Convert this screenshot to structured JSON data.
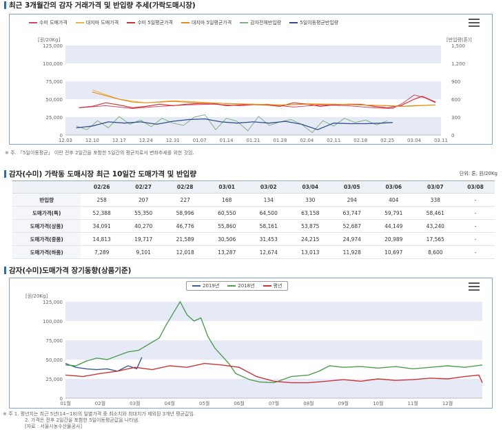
{
  "section1": {
    "title": "최근 3개월간의 감자 거래가격 및 반입량 추세(가락도매시장)",
    "note": "※ 주. 「5일이동평균」 이란 전후 2일간을 포함한 5일간의 평균치로서 변화추세를 위한 것임."
  },
  "section2": {
    "title": "감자(수미) 가락동 도매시장 최근 10일간 도매가격 및 반입량",
    "unit": "단위: 톤, 원/20Kg"
  },
  "section3": {
    "title": "감자(수미)도매가격 장기동향(상품기준)",
    "notes": [
      "※ 주 1. 평년치는 최근 5년(14~18)의 일별가격 중 최소치와 최대치가 제외된 3개년 평균값임.",
      "2. 가격은 전후 2일간을 포함한 5일이동평균값을 나타냄.",
      "[자료 : 서울시농수산물공사]"
    ]
  },
  "colors": {
    "frame": "#7fa2c8",
    "band": "#e6eaf6",
    "sumi_price": "#d64562",
    "daeji_price": "#f0b050",
    "sumi_ma5": "#d23030",
    "daeji_ma5": "#e88a1a",
    "volume": "#80b080",
    "volume_ma5": "#2e4c88",
    "y2019": "#3a5a95",
    "y2018": "#4f9e4f",
    "normal": "#c93535"
  },
  "chart_data": [
    {
      "type": "line",
      "title": "최근 3개월간의 감자 거래가격 및 반입량 추세(가락도매시장)",
      "xlabel": "",
      "ylabel": "[원/20Kg]",
      "y2label": "[반입량(톤)]",
      "ylim": [
        0,
        125000
      ],
      "y2lim": [
        0,
        1500
      ],
      "yticks": [
        "0",
        "25,000",
        "50,000",
        "75,000",
        "100,000",
        "125,000"
      ],
      "y2ticks": [
        "0",
        "300",
        "600",
        "900",
        "1,200",
        "1,500"
      ],
      "x_ticks": [
        "12.03",
        "12.10",
        "12.17",
        "12.24",
        "12.31",
        "01.07",
        "01.14",
        "01.21",
        "01.28",
        "02.04",
        "02.11",
        "02.18",
        "02.25",
        "03.04",
        "03.11"
      ],
      "grid": true,
      "legend": "top",
      "series": [
        {
          "name": "수미 도매가격",
          "axis": "left",
          "x": [
            0.5,
            1.5,
            2.5,
            3.5,
            4.5,
            5.5,
            6.5,
            7.5,
            8.5,
            9.5,
            10.5,
            11.5,
            12.2,
            12.6,
            13.0,
            13.4,
            13.8
          ],
          "y": [
            38000,
            41000,
            37000,
            40000,
            42000,
            43000,
            41000,
            43000,
            39000,
            42000,
            41000,
            38000,
            37000,
            45000,
            56000,
            52000,
            45000
          ]
        },
        {
          "name": "대지마 도매가격",
          "axis": "left",
          "x": [
            1.0,
            2.0,
            3.0,
            4.0,
            5.0,
            6.0,
            7.0,
            8.0,
            9.0,
            10.0,
            11.0,
            12.0,
            12.8,
            13.8
          ],
          "y": [
            63000,
            50000,
            45000,
            48000,
            46000,
            44000,
            42000,
            41000,
            44000,
            43000,
            42000,
            41000,
            40000,
            42000
          ]
        },
        {
          "name": "수미 5일평균가격",
          "axis": "left",
          "x": [
            0.5,
            1.0,
            1.5,
            2.0,
            2.5,
            3.0,
            3.5,
            4.0,
            4.5,
            5.0,
            5.5,
            6.0,
            6.5,
            7.0,
            7.5,
            8.0,
            8.5,
            9.0,
            9.5,
            10.0,
            10.5,
            11.0,
            11.5,
            12.0,
            12.5,
            13.0,
            13.3,
            13.8
          ],
          "y": [
            38000,
            40000,
            45000,
            42000,
            38000,
            40000,
            43000,
            41000,
            43000,
            44000,
            44000,
            41000,
            42000,
            43000,
            42000,
            40000,
            45000,
            43000,
            40000,
            42000,
            43000,
            43000,
            40000,
            38000,
            41000,
            50000,
            54000,
            46000
          ]
        },
        {
          "name": "대지마 5일평균가격",
          "axis": "left",
          "x": [
            1.0,
            1.5,
            2.0,
            2.5,
            3.0,
            4.0,
            5.0,
            6.0,
            7.0,
            8.0,
            9.0,
            10.0,
            11.0,
            12.0,
            12.5,
            13.0,
            13.8
          ],
          "y": [
            60000,
            55000,
            50000,
            46000,
            45000,
            47000,
            45000,
            44000,
            43000,
            42000,
            43000,
            43000,
            42000,
            41000,
            40000,
            41000,
            42000
          ]
        },
        {
          "name": "감자전체반입량",
          "axis": "right",
          "x": [
            0.4,
            0.8,
            1.2,
            1.6,
            2.0,
            2.4,
            2.8,
            3.2,
            3.6,
            4.0,
            4.4,
            4.8,
            5.2,
            5.6,
            6.0,
            6.4,
            6.8,
            7.2,
            7.6,
            8.0,
            8.4,
            8.8,
            9.2,
            9.6,
            10.0,
            10.4,
            10.8,
            11.2,
            11.6,
            12.0
          ],
          "y": [
            150,
            90,
            240,
            120,
            310,
            180,
            250,
            140,
            280,
            200,
            160,
            300,
            340,
            90,
            280,
            230,
            70,
            310,
            160,
            220,
            260,
            180,
            40,
            240,
            150,
            280,
            210,
            250,
            170,
            240
          ]
        },
        {
          "name": "5일이동평균반입량",
          "axis": "right",
          "x": [
            0.4,
            1.0,
            1.6,
            2.2,
            2.8,
            3.4,
            4.0,
            4.6,
            5.2,
            5.8,
            6.4,
            7.0,
            7.6,
            8.2,
            8.8,
            9.4,
            10.0,
            10.6,
            11.2,
            11.8,
            12.2
          ],
          "y": [
            120,
            150,
            220,
            200,
            220,
            180,
            230,
            260,
            270,
            220,
            200,
            220,
            200,
            230,
            180,
            90,
            200,
            190,
            190,
            200,
            210
          ]
        }
      ]
    },
    {
      "type": "table",
      "title": "감자(수미) 가락동 도매시장 최근 10일간 도매가격 및 반입량",
      "columns": [
        "",
        "02/26",
        "02/27",
        "02/28",
        "03/01",
        "03/02",
        "03/04",
        "03/05",
        "03/06",
        "03/07",
        "03/08"
      ],
      "rows": [
        [
          "반입량",
          "258",
          "207",
          "227",
          "168",
          "134",
          "330",
          "294",
          "404",
          "338",
          "-"
        ],
        [
          "도매가격(특)",
          "52,388",
          "55,350",
          "58,996",
          "60,550",
          "64,500",
          "63,158",
          "63,747",
          "59,791",
          "58,461",
          "-"
        ],
        [
          "도매가격(상품)",
          "34,091",
          "40,270",
          "46,776",
          "55,860",
          "58,161",
          "53,875",
          "52,687",
          "44,149",
          "43,240",
          "-"
        ],
        [
          "도매가격(중품)",
          "14,813",
          "19,717",
          "21,589",
          "30,506",
          "31,453",
          "24,215",
          "24,974",
          "20,989",
          "17,565",
          "-"
        ],
        [
          "도매가격(하품)",
          "7,289",
          "9,101",
          "12,018",
          "13,287",
          "12,674",
          "13,013",
          "11,928",
          "10,697",
          "8,600",
          "-"
        ]
      ]
    },
    {
      "type": "line",
      "title": "감자(수미)도매가격 장기동향(상품기준)",
      "xlabel": "",
      "ylabel": "[원/20Kg]",
      "ylim": [
        0,
        125000
      ],
      "yticks": [
        "0",
        "25,000",
        "50,000",
        "75,000",
        "100,000",
        "125,000"
      ],
      "x_ticks": [
        "01월",
        "02월",
        "03월",
        "04월",
        "05월",
        "06월",
        "07월",
        "08월",
        "09월",
        "10월",
        "11월",
        "12월"
      ],
      "grid": true,
      "legend": "top",
      "series": [
        {
          "name": "2019년",
          "x": [
            0.0,
            0.3,
            0.6,
            0.9,
            1.2,
            1.5,
            1.8,
            2.05,
            2.2
          ],
          "y": [
            45000,
            40000,
            38000,
            37000,
            38000,
            35000,
            42000,
            38000,
            53000
          ]
        },
        {
          "name": "2018년",
          "x": [
            0.0,
            0.3,
            0.6,
            0.9,
            1.2,
            1.5,
            1.8,
            2.1,
            2.4,
            2.7,
            2.9,
            3.1,
            3.3,
            3.5,
            3.7,
            3.9,
            4.1,
            4.3,
            4.5,
            4.7,
            4.9,
            5.1,
            5.3,
            5.6,
            6.0,
            6.5,
            7.0,
            7.3,
            7.6,
            8.0,
            8.5,
            9.0,
            9.5,
            10.0,
            10.5,
            11.0,
            11.5,
            12.0
          ],
          "y": [
            43000,
            42000,
            48000,
            52000,
            50000,
            55000,
            60000,
            62000,
            70000,
            78000,
            95000,
            110000,
            125000,
            108000,
            100000,
            104000,
            80000,
            65000,
            55000,
            45000,
            32000,
            28000,
            24000,
            21000,
            20000,
            28000,
            30000,
            35000,
            42000,
            40000,
            41000,
            39000,
            41000,
            38000,
            40000,
            42000,
            40000,
            43000
          ]
        },
        {
          "name": "평년",
          "x": [
            0.0,
            0.5,
            1.0,
            1.5,
            2.0,
            2.5,
            3.0,
            3.5,
            4.0,
            4.5,
            5.0,
            5.5,
            6.0,
            6.5,
            7.0,
            7.5,
            8.0,
            8.5,
            9.0,
            9.5,
            10.0,
            10.5,
            11.0,
            11.5,
            11.9,
            12.0
          ],
          "y": [
            30000,
            28000,
            32000,
            35000,
            40000,
            37000,
            42000,
            40000,
            45000,
            43000,
            40000,
            28000,
            22000,
            20000,
            20000,
            22000,
            24000,
            22000,
            25000,
            23000,
            24000,
            26000,
            25000,
            28000,
            30000,
            20000
          ]
        }
      ]
    }
  ]
}
